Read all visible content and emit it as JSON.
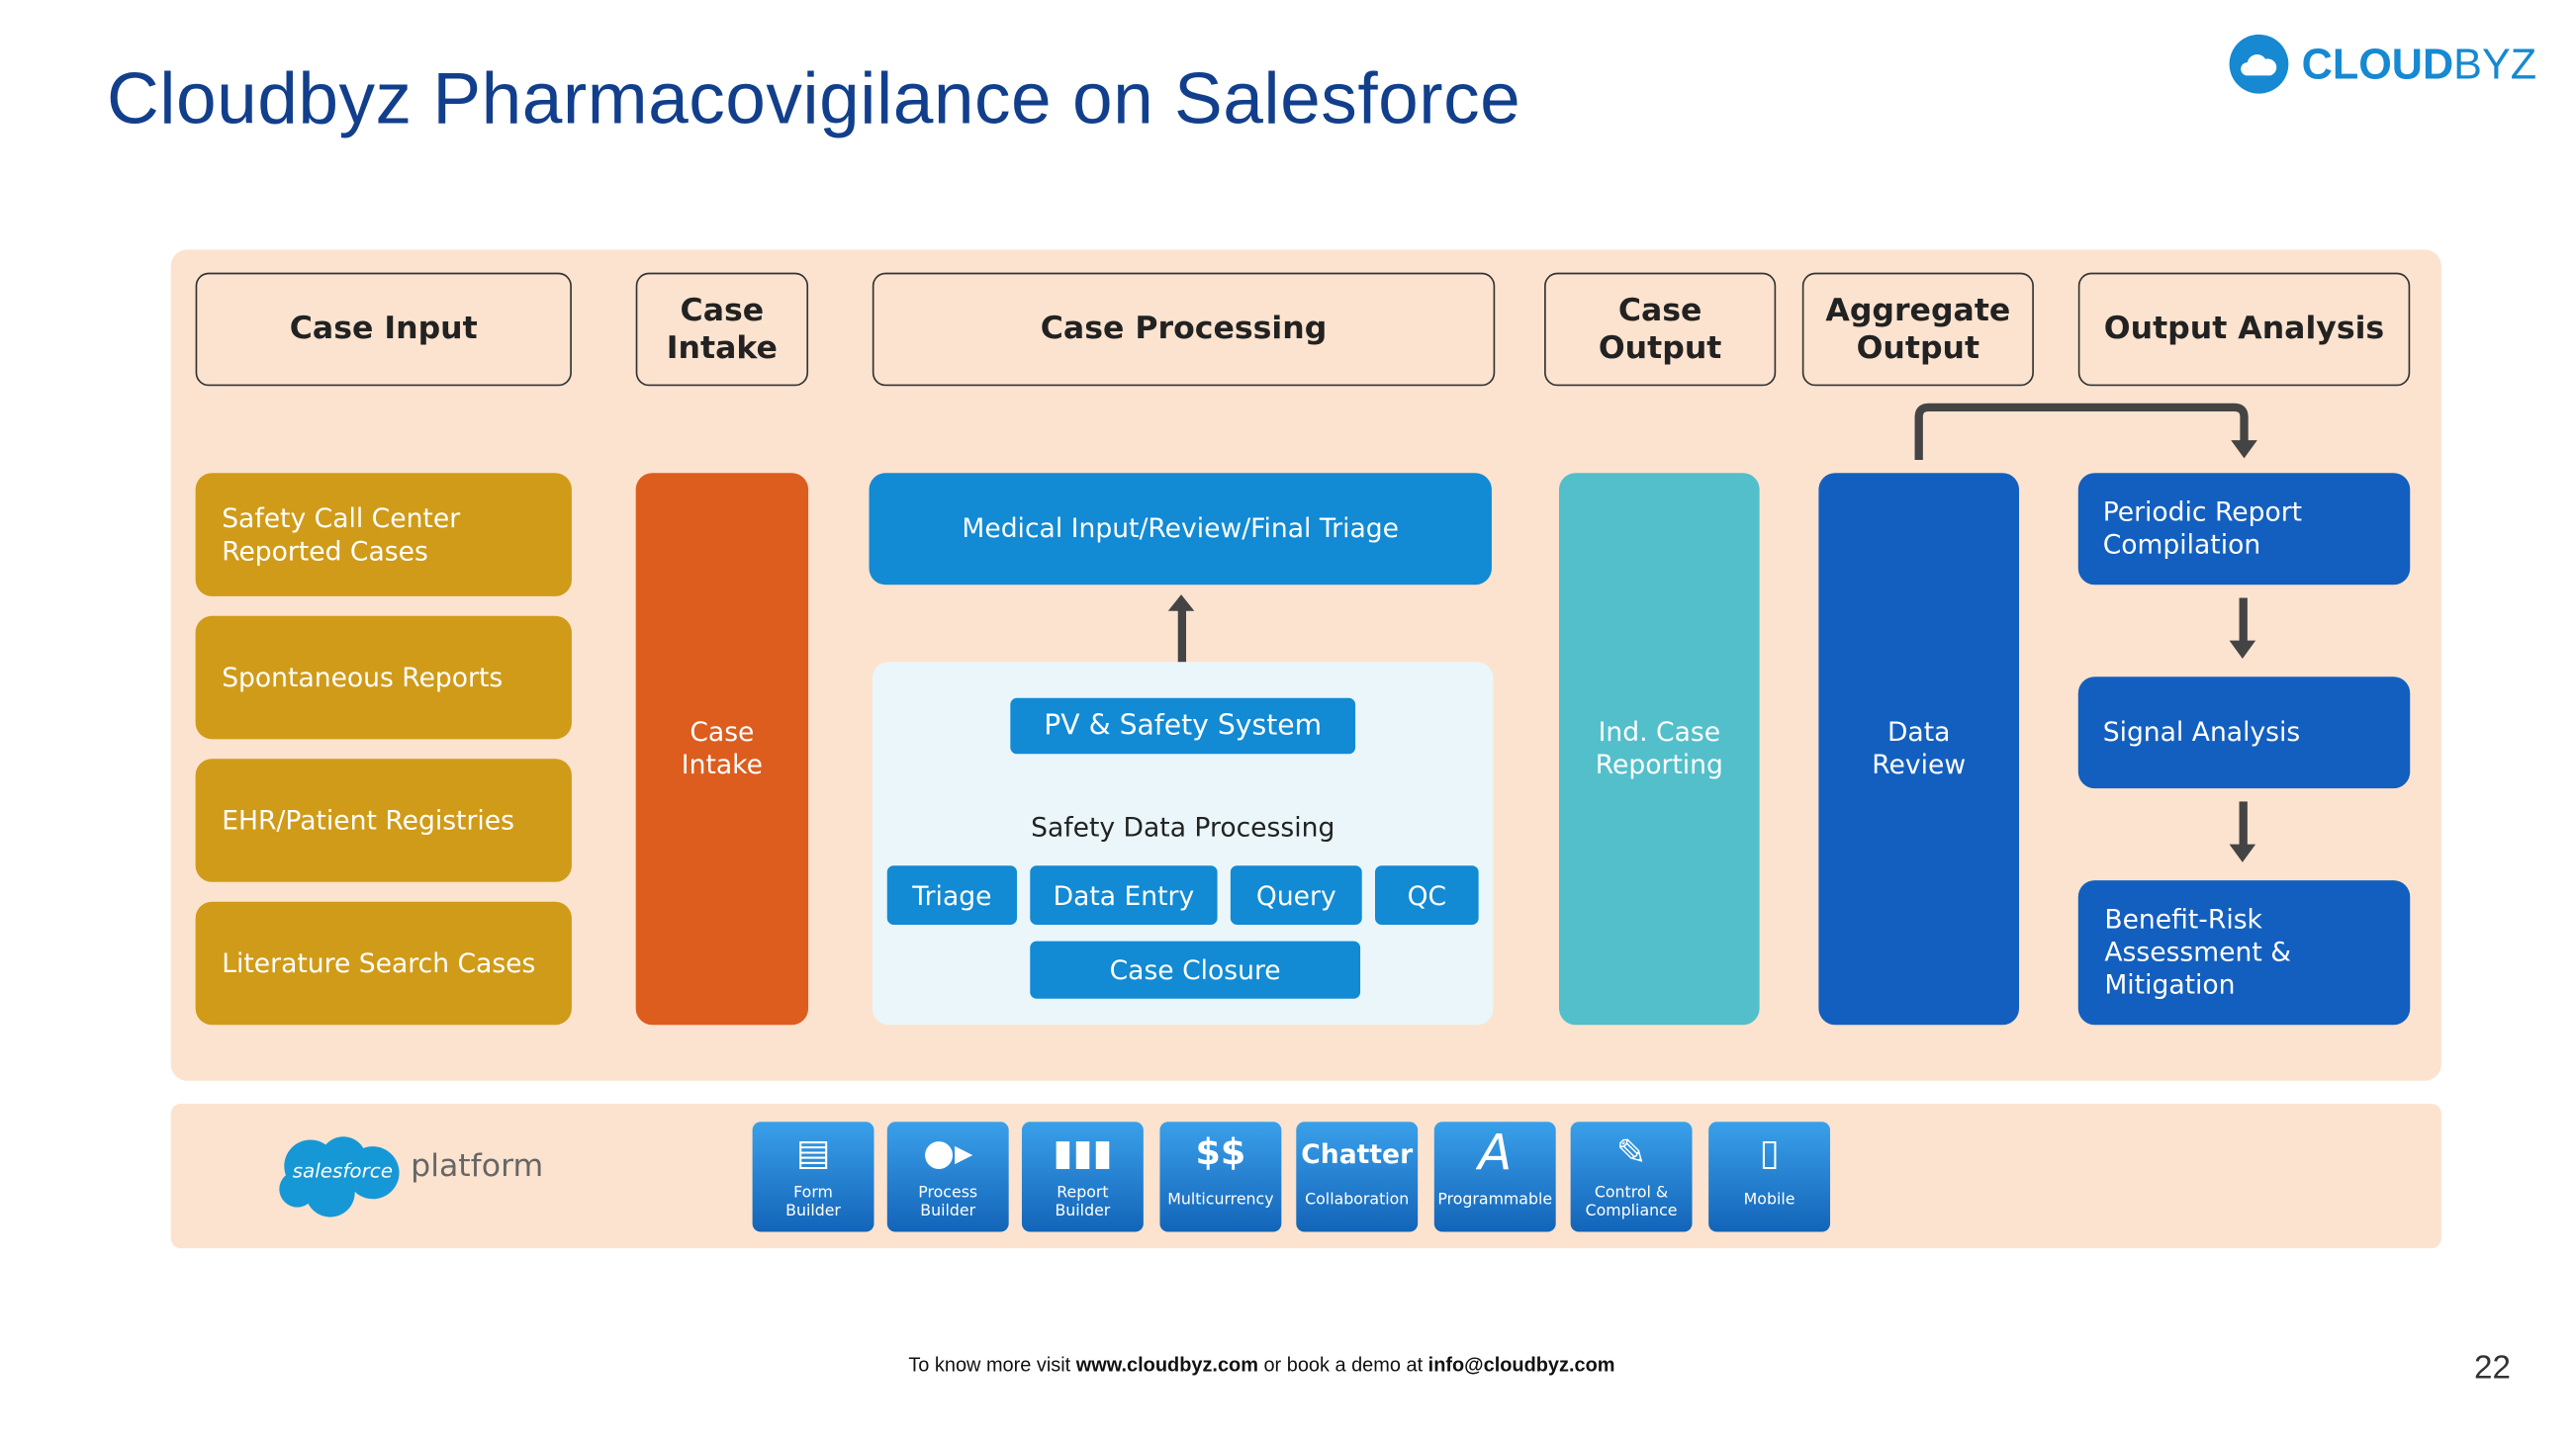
{
  "title": "Cloudbyz Pharmacovigilance on Salesforce",
  "logo": {
    "bold": "CLOUD",
    "light": "BYZ"
  },
  "headers": [
    "Case Input",
    "Case Intake",
    "Case Processing",
    "Case Output",
    "Aggregate Output",
    "Output Analysis"
  ],
  "case_input": [
    "Safety Call Center Reported Cases",
    "Spontaneous Reports",
    "EHR/Patient Registries",
    "Literature Search Cases"
  ],
  "case_intake": "Case Intake",
  "processing": {
    "triage": "Medical Input/Review/Final Triage",
    "pv_system": "PV & Safety System",
    "sdp_label": "Safety Data Processing",
    "steps": [
      "Triage",
      "Data Entry",
      "Query",
      "QC"
    ],
    "closure": "Case Closure"
  },
  "case_output": "Ind. Case Reporting",
  "aggregate": "Data Review",
  "analysis": [
    "Periodic Report Compilation",
    "Signal Analysis",
    "Benefit-Risk Assessment & Mitigation"
  ],
  "platform": {
    "salesforce": "salesforce",
    "platform": "platform",
    "tiles": [
      {
        "icon": "form-icon",
        "label": "Form Builder"
      },
      {
        "icon": "process-icon",
        "label": "Process Builder"
      },
      {
        "icon": "bar-chart-icon",
        "label": "Report Builder"
      },
      {
        "icon": "coins-icon",
        "label": "Multicurrency"
      },
      {
        "icon": "chatter",
        "label": "Collaboration",
        "glyph": "Chatter"
      },
      {
        "icon": "letter-a-icon",
        "label": "Programmable",
        "glyph": "A"
      },
      {
        "icon": "document-pen-icon",
        "label": "Control & Compliance"
      },
      {
        "icon": "tablet-icon",
        "label": "Mobile"
      }
    ]
  },
  "footer": {
    "pre": "To know more visit ",
    "site": "www.cloudbyz.com",
    "mid": " or book a demo at ",
    "email": "info@cloudbyz.com"
  },
  "page_number": "22",
  "colors": {
    "title": "#123f8c",
    "gold": "#d09b19",
    "orange": "#dc5d1e",
    "blue": "#128ad4",
    "teal": "#52bfca",
    "dark_blue": "#135fbf",
    "panel": "#fce3cf"
  }
}
